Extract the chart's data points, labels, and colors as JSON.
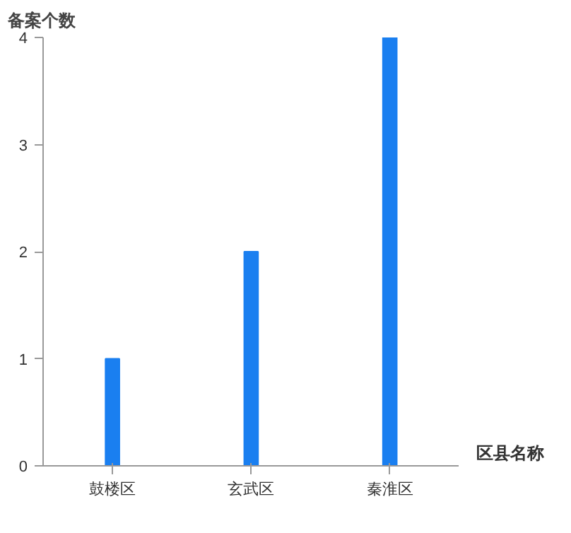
{
  "chart_data": {
    "type": "bar",
    "xlabel": "区县名称",
    "ylabel": "备案个数",
    "categories": [
      "鼓楼区",
      "玄武区",
      "秦淮区"
    ],
    "values": [
      1,
      2,
      4
    ],
    "color": "#1a7ff0",
    "ylim": [
      0,
      4
    ],
    "yticks": [
      0,
      1,
      2,
      3,
      4
    ],
    "grid": false
  }
}
